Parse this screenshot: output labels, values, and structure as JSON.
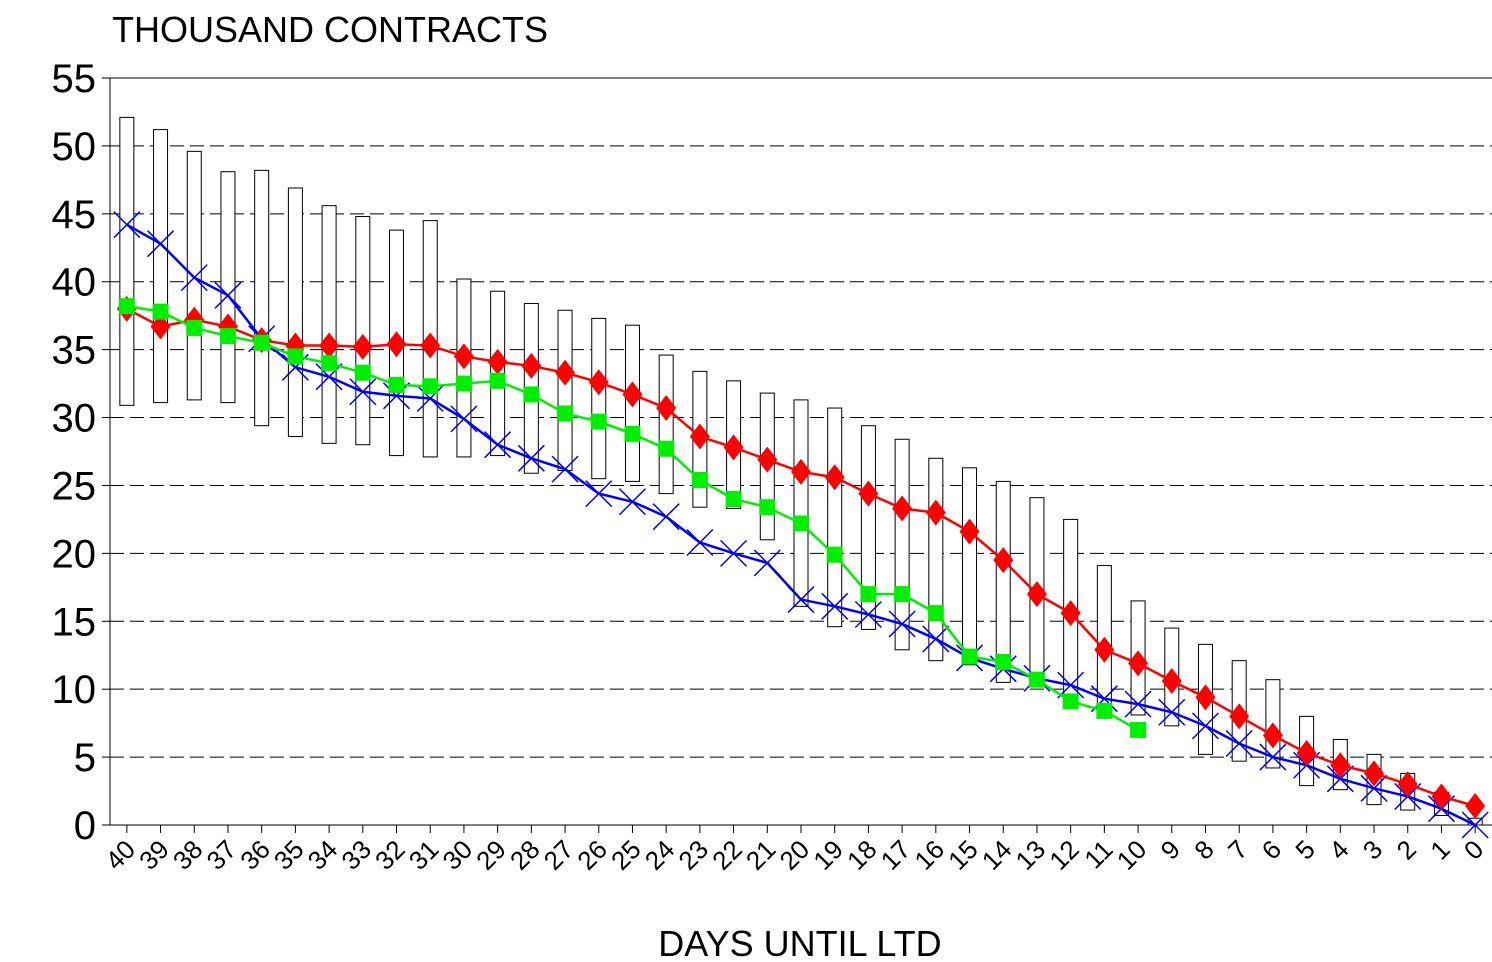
{
  "chart_data": {
    "type": "line",
    "title": "THOUSAND CONTRACTS",
    "x_label": "DAYS UNTIL LTD",
    "categories": [
      "40",
      "39",
      "38",
      "37",
      "36",
      "35",
      "34",
      "33",
      "32",
      "31",
      "30",
      "29",
      "28",
      "27",
      "26",
      "25",
      "24",
      "23",
      "22",
      "21",
      "20",
      "19",
      "18",
      "17",
      "16",
      "15",
      "14",
      "13",
      "12",
      "11",
      "10",
      "9",
      "8",
      "7",
      "6",
      "5",
      "4",
      "3",
      "2",
      "1",
      "0"
    ],
    "ranges": {
      "color": "#000000",
      "low": [
        30.9,
        31.1,
        31.3,
        31.1,
        29.4,
        28.6,
        28.1,
        28.0,
        27.2,
        27.1,
        27.1,
        27.2,
        25.9,
        26.1,
        25.5,
        25.3,
        24.4,
        23.4,
        23.3,
        21.0,
        16.1,
        14.6,
        14.4,
        12.9,
        12.1,
        11.8,
        10.5,
        10.8,
        9.2,
        8.5,
        8.1,
        7.3,
        5.2,
        4.7,
        4.2,
        2.9,
        2.6,
        1.5,
        1.1,
        0.7,
        0.0
      ],
      "high": [
        52.1,
        51.2,
        49.6,
        48.1,
        48.2,
        46.9,
        45.6,
        44.8,
        43.8,
        44.5,
        40.2,
        39.3,
        38.4,
        37.9,
        37.3,
        36.8,
        34.6,
        33.4,
        32.7,
        31.8,
        31.3,
        30.7,
        29.4,
        28.4,
        27.0,
        26.3,
        25.3,
        24.1,
        22.5,
        19.1,
        16.5,
        14.5,
        13.3,
        12.1,
        10.7,
        8.0,
        6.3,
        5.2,
        3.8,
        2.4,
        0.5
      ]
    },
    "series": [
      {
        "color": "#0000ff",
        "marker": "x",
        "values": [
          44.2,
          42.8,
          40.3,
          39.0,
          35.8,
          33.7,
          33.0,
          31.9,
          31.6,
          31.4,
          29.9,
          28.0,
          27.0,
          26.2,
          24.4,
          23.8,
          22.7,
          20.8,
          20.0,
          19.3,
          16.6,
          16.1,
          15.5,
          14.8,
          13.7,
          12.3,
          11.5,
          10.8,
          10.3,
          9.3,
          8.9,
          8.3,
          7.3,
          6.0,
          5.0,
          4.4,
          3.4,
          2.7,
          2.1,
          1.2,
          0.0
        ]
      },
      {
        "color": "#ff0000",
        "marker": "diamond",
        "values": [
          38.0,
          36.7,
          37.2,
          36.7,
          35.7,
          35.3,
          35.3,
          35.2,
          35.4,
          35.3,
          34.5,
          34.1,
          33.8,
          33.3,
          32.6,
          31.7,
          30.7,
          28.6,
          27.8,
          26.9,
          26.0,
          25.6,
          24.4,
          23.3,
          23.0,
          21.6,
          19.5,
          17.0,
          15.6,
          12.9,
          11.9,
          10.6,
          9.4,
          8.0,
          6.6,
          5.3,
          4.4,
          3.8,
          3.0,
          2.1,
          1.4
        ]
      },
      {
        "color": "#00ee00",
        "marker": "square",
        "values": [
          38.2,
          37.8,
          36.6,
          36.0,
          35.5,
          34.5,
          34.0,
          33.3,
          32.4,
          32.3,
          32.5,
          32.7,
          31.7,
          30.3,
          29.7,
          28.8,
          27.7,
          25.4,
          24.0,
          23.4,
          22.2,
          19.9,
          17.0,
          17.0,
          15.6,
          12.4,
          12.0,
          10.7,
          9.1,
          8.4,
          7.0,
          null,
          null,
          null,
          null,
          null,
          null,
          null,
          null,
          null,
          null
        ]
      }
    ],
    "ylim": [
      0,
      55
    ],
    "yticks": [
      0,
      5,
      10,
      15,
      20,
      25,
      30,
      35,
      40,
      45,
      50,
      55
    ],
    "grid": true
  }
}
